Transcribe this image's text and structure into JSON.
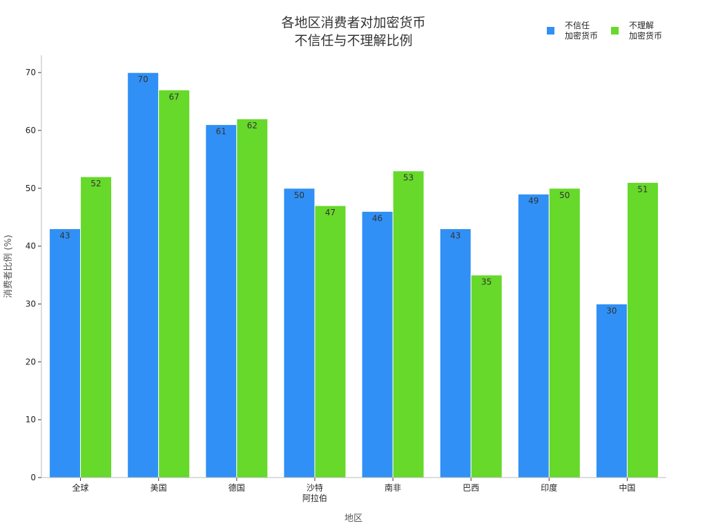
{
  "chart_data": {
    "type": "bar",
    "title_lines": [
      "各地区消费者对加密货币",
      "不信任与不理解比例"
    ],
    "xlabel": "地区",
    "ylabel": "消费者比例 (%)",
    "ylim": [
      0,
      73
    ],
    "yticks": [
      0,
      10,
      20,
      30,
      40,
      50,
      60,
      70
    ],
    "grid": false,
    "legend_position": "top-right",
    "categories": [
      [
        "全球"
      ],
      [
        "美国"
      ],
      [
        "德国"
      ],
      [
        "沙特",
        "阿拉伯"
      ],
      [
        "南非"
      ],
      [
        "巴西"
      ],
      [
        "印度"
      ],
      [
        "中国"
      ]
    ],
    "series": [
      {
        "name_lines": [
          "不信任",
          "加密货币"
        ],
        "color": "#3090F5",
        "values": [
          43,
          70,
          61,
          50,
          46,
          43,
          49,
          30
        ]
      },
      {
        "name_lines": [
          "不理解",
          "加密货币"
        ],
        "color": "#66D92A",
        "values": [
          52,
          67,
          62,
          47,
          53,
          35,
          50,
          51
        ]
      }
    ]
  }
}
